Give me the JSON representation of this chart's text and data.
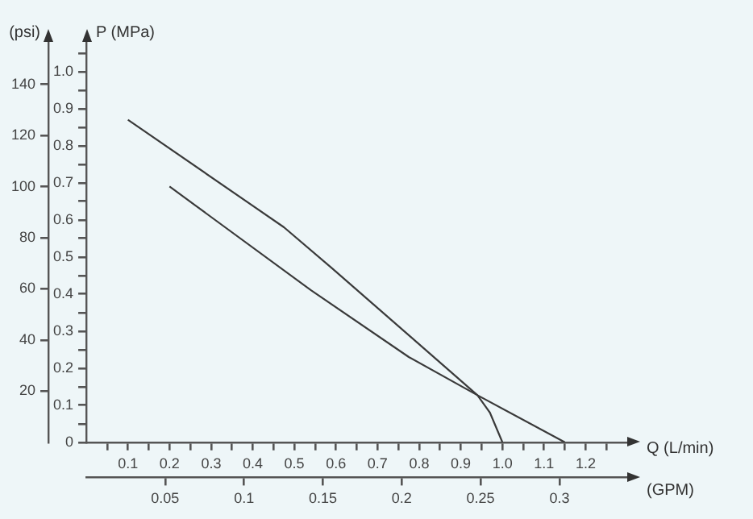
{
  "chart_data": {
    "type": "line",
    "xlabel": "Q (L/min)",
    "x2label": "(GPM)",
    "ylabel": "P (MPa)",
    "y2label": "(psi)",
    "series": [
      {
        "color": "#3a3a3a",
        "x": [
          0.1,
          0.475,
          0.59,
          0.94,
          1.15
        ],
        "values": [
          0.87,
          0.58,
          0.47,
          0.127,
          0
        ]
      },
      {
        "color": "#3a3a3a",
        "x": [
          0.2,
          0.54,
          0.775,
          0.94,
          0.97,
          1.0
        ],
        "values": [
          0.69,
          0.41,
          0.23,
          0.127,
          0.08,
          0
        ]
      }
    ],
    "xlim": [
      0,
      1.3
    ],
    "xticks": [
      {
        "value": 0.05,
        "label": null
      },
      0.1,
      {
        "value": 0.15,
        "label": null
      },
      0.2,
      {
        "value": 0.25,
        "label": null
      },
      0.3,
      {
        "value": 0.35,
        "label": null
      },
      0.4,
      {
        "value": 0.45,
        "label": null
      },
      0.5,
      {
        "value": 0.55,
        "label": null
      },
      0.6,
      {
        "value": 0.65,
        "label": null
      },
      0.7,
      {
        "value": 0.75,
        "label": null
      },
      0.8,
      {
        "value": 0.85,
        "label": null
      },
      0.9,
      {
        "value": 0.95,
        "label": null
      },
      {
        "value": 1.0,
        "label": "1.0"
      },
      {
        "value": 1.05,
        "label": null
      },
      1.1,
      {
        "value": 1.15,
        "label": null
      },
      1.2,
      {
        "value": 1.25,
        "label": null
      }
    ],
    "x2lim": [
      0,
      0.343
    ],
    "x2ticks": [
      0.05,
      0.1,
      0.15,
      0.2,
      0.25,
      0.3
    ],
    "ylim": [
      0,
      1.08
    ],
    "yticks": [
      0,
      {
        "value": 0.05,
        "label": null
      },
      0.1,
      {
        "value": 0.15,
        "label": null
      },
      0.2,
      {
        "value": 0.25,
        "label": null
      },
      0.3,
      {
        "value": 0.35,
        "label": null
      },
      0.4,
      {
        "value": 0.45,
        "label": null
      },
      0.5,
      {
        "value": 0.55,
        "label": null
      },
      0.6,
      {
        "value": 0.65,
        "label": null
      },
      0.7,
      {
        "value": 0.75,
        "label": null
      },
      0.8,
      {
        "value": 0.85,
        "label": null
      },
      0.9,
      {
        "value": 0.95,
        "label": null
      },
      {
        "value": 1.0,
        "label": "1.0"
      },
      {
        "value": 1.05,
        "label": null
      }
    ],
    "y2lim": [
      0,
      156.6
    ],
    "y2ticks": [
      20,
      40,
      60,
      80,
      100,
      120,
      140
    ],
    "grid": false,
    "legend": false,
    "marker": "none",
    "line_style": "solid"
  }
}
